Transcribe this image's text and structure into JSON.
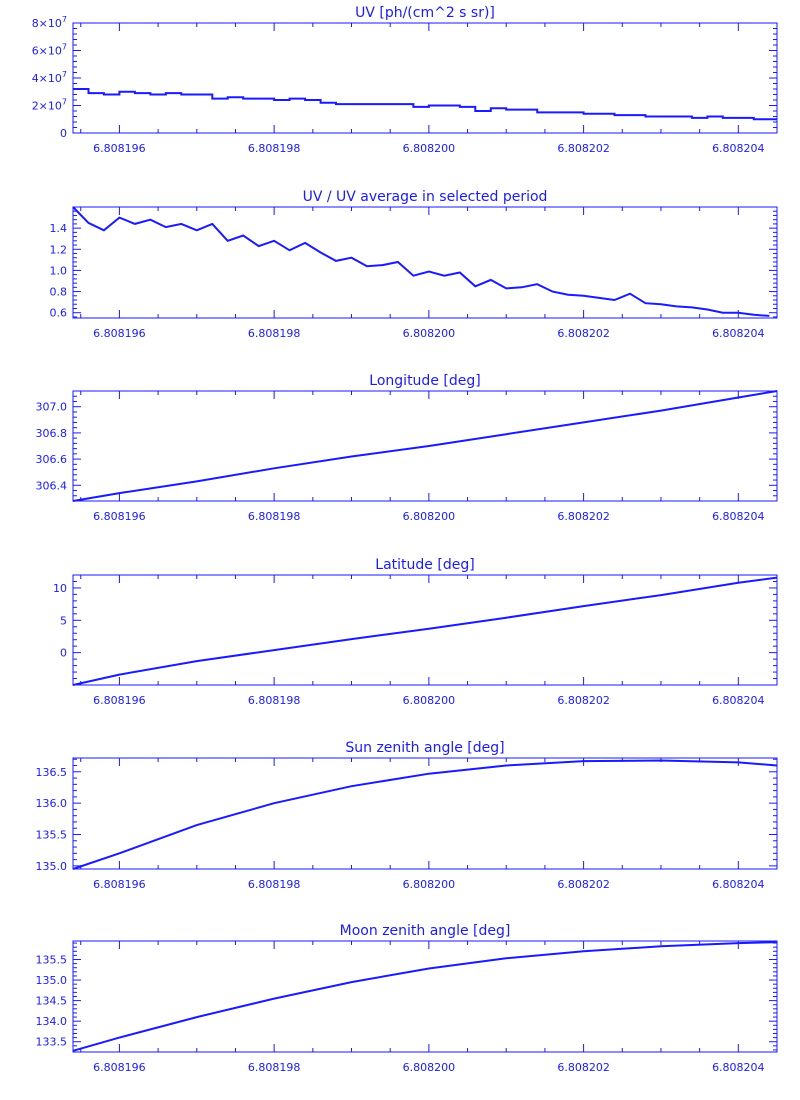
{
  "colors": {
    "ink": "#1a1aff",
    "background": "#ffffff"
  },
  "chart_data": [
    {
      "type": "line",
      "step": true,
      "title": "UV [ph/(cm^2 s sr)]",
      "xlim": [
        6.8081954,
        6.8082045
      ],
      "x_ticks": [
        6.808196,
        6.808198,
        6.8082,
        6.808202,
        6.808204
      ],
      "x_tick_labels": [
        "6.808196",
        "6.808198",
        "6.808200",
        "6.808202",
        "6.808204"
      ],
      "ylim": [
        0,
        80000000
      ],
      "y_ticks": [
        0,
        20000000,
        40000000,
        60000000,
        80000000
      ],
      "y_tick_labels": [
        {
          "base": "0",
          "exp": ""
        },
        {
          "base": "2×10",
          "exp": "7"
        },
        {
          "base": "4×10",
          "exp": "7"
        },
        {
          "base": "6×10",
          "exp": "7"
        },
        {
          "base": "8×10",
          "exp": "7"
        }
      ],
      "series": [
        {
          "x": [
            6.8081954,
            6.8081956,
            6.8081958,
            6.808196,
            6.8081962,
            6.8081964,
            6.8081966,
            6.8081968,
            6.808197,
            6.8081972,
            6.8081974,
            6.8081976,
            6.8081978,
            6.808198,
            6.8081982,
            6.8081984,
            6.8081986,
            6.8081988,
            6.808199,
            6.8081992,
            6.8081994,
            6.8081996,
            6.8081998,
            6.8082,
            6.8082002,
            6.8082004,
            6.8082006,
            6.8082008,
            6.808201,
            6.8082012,
            6.8082014,
            6.8082016,
            6.8082018,
            6.808202,
            6.8082022,
            6.8082024,
            6.8082026,
            6.8082028,
            6.808203,
            6.8082032,
            6.8082034,
            6.8082036,
            6.8082038,
            6.808204,
            6.8082042,
            6.8082044
          ],
          "y": [
            32000000,
            29000000,
            28000000,
            30000000,
            29000000,
            28000000,
            29000000,
            28000000,
            28000000,
            25000000,
            26000000,
            25000000,
            25000000,
            24000000,
            25000000,
            24000000,
            22000000,
            21000000,
            21000000,
            21000000,
            21000000,
            21000000,
            19000000,
            20000000,
            20000000,
            19000000,
            16000000,
            18000000,
            17000000,
            17000000,
            15000000,
            15000000,
            15000000,
            14000000,
            14000000,
            13000000,
            13000000,
            12000000,
            12000000,
            12000000,
            11000000,
            12000000,
            11000000,
            11000000,
            10000000,
            10000000
          ]
        }
      ]
    },
    {
      "type": "line",
      "title": "UV / UV average in selected period",
      "xlim": [
        6.8081954,
        6.8082045
      ],
      "x_ticks": [
        6.808196,
        6.808198,
        6.8082,
        6.808202,
        6.808204
      ],
      "x_tick_labels": [
        "6.808196",
        "6.808198",
        "6.808200",
        "6.808202",
        "6.808204"
      ],
      "ylim": [
        0.55,
        1.6
      ],
      "y_ticks": [
        0.6,
        0.8,
        1.0,
        1.2,
        1.4
      ],
      "y_tick_labels": [
        {
          "base": "0.6",
          "exp": ""
        },
        {
          "base": "0.8",
          "exp": ""
        },
        {
          "base": "1.0",
          "exp": ""
        },
        {
          "base": "1.2",
          "exp": ""
        },
        {
          "base": "1.4",
          "exp": ""
        }
      ],
      "series": [
        {
          "x": [
            6.8081954,
            6.8081956,
            6.8081958,
            6.808196,
            6.8081962,
            6.8081964,
            6.8081966,
            6.8081968,
            6.808197,
            6.8081972,
            6.8081974,
            6.8081976,
            6.8081978,
            6.808198,
            6.8081982,
            6.8081984,
            6.8081986,
            6.8081988,
            6.808199,
            6.8081992,
            6.8081994,
            6.8081996,
            6.8081998,
            6.8082,
            6.8082002,
            6.8082004,
            6.8082006,
            6.8082008,
            6.808201,
            6.8082012,
            6.8082014,
            6.8082016,
            6.8082018,
            6.808202,
            6.8082022,
            6.8082024,
            6.8082026,
            6.8082028,
            6.808203,
            6.8082032,
            6.8082034,
            6.8082036,
            6.8082038,
            6.808204,
            6.8082042,
            6.8082044
          ],
          "y": [
            1.6,
            1.45,
            1.38,
            1.5,
            1.44,
            1.48,
            1.41,
            1.44,
            1.38,
            1.44,
            1.28,
            1.33,
            1.23,
            1.28,
            1.19,
            1.26,
            1.17,
            1.09,
            1.12,
            1.04,
            1.05,
            1.08,
            0.95,
            0.99,
            0.95,
            0.98,
            0.85,
            0.91,
            0.83,
            0.84,
            0.87,
            0.8,
            0.77,
            0.76,
            0.74,
            0.72,
            0.78,
            0.69,
            0.68,
            0.66,
            0.65,
            0.63,
            0.6,
            0.6,
            0.58,
            0.57
          ]
        }
      ]
    },
    {
      "type": "line",
      "title": "Longitude [deg]",
      "xlim": [
        6.8081954,
        6.8082045
      ],
      "x_ticks": [
        6.808196,
        6.808198,
        6.8082,
        6.808202,
        6.808204
      ],
      "x_tick_labels": [
        "6.808196",
        "6.808198",
        "6.808200",
        "6.808202",
        "6.808204"
      ],
      "ylim": [
        306.28,
        307.12
      ],
      "y_ticks": [
        306.4,
        306.6,
        306.8,
        307.0
      ],
      "y_tick_labels": [
        {
          "base": "306.4",
          "exp": ""
        },
        {
          "base": "306.6",
          "exp": ""
        },
        {
          "base": "306.8",
          "exp": ""
        },
        {
          "base": "307.0",
          "exp": ""
        }
      ],
      "series": [
        {
          "x": [
            6.8081954,
            6.808196,
            6.808197,
            6.808198,
            6.808199,
            6.8082,
            6.808201,
            6.808202,
            6.808203,
            6.808204,
            6.8082045
          ],
          "y": [
            306.28,
            306.34,
            306.43,
            306.53,
            306.62,
            306.7,
            306.79,
            306.88,
            306.97,
            307.07,
            307.12
          ]
        }
      ]
    },
    {
      "type": "line",
      "title": "Latitude [deg]",
      "xlim": [
        6.8081954,
        6.8082045
      ],
      "x_ticks": [
        6.808196,
        6.808198,
        6.8082,
        6.808202,
        6.808204
      ],
      "x_tick_labels": [
        "6.808196",
        "6.808198",
        "6.808200",
        "6.808202",
        "6.808204"
      ],
      "ylim": [
        -5,
        12
      ],
      "y_ticks": [
        0,
        5,
        10
      ],
      "y_tick_labels": [
        {
          "base": "0",
          "exp": ""
        },
        {
          "base": "5",
          "exp": ""
        },
        {
          "base": "10",
          "exp": ""
        }
      ],
      "series": [
        {
          "x": [
            6.8081954,
            6.808196,
            6.808197,
            6.808198,
            6.808199,
            6.8082,
            6.808201,
            6.808202,
            6.808203,
            6.808204,
            6.8082045
          ],
          "y": [
            -5,
            -3.4,
            -1.3,
            0.4,
            2.1,
            3.7,
            5.4,
            7.2,
            8.9,
            10.8,
            11.6
          ]
        }
      ]
    },
    {
      "type": "line",
      "title": "Sun zenith angle [deg]",
      "xlim": [
        6.8081954,
        6.8082045
      ],
      "x_ticks": [
        6.808196,
        6.808198,
        6.8082,
        6.808202,
        6.808204
      ],
      "x_tick_labels": [
        "6.808196",
        "6.808198",
        "6.808200",
        "6.808202",
        "6.808204"
      ],
      "ylim": [
        134.95,
        136.72
      ],
      "y_ticks": [
        135.0,
        135.5,
        136.0,
        136.5
      ],
      "y_tick_labels": [
        {
          "base": "135.0",
          "exp": ""
        },
        {
          "base": "135.5",
          "exp": ""
        },
        {
          "base": "136.0",
          "exp": ""
        },
        {
          "base": "136.5",
          "exp": ""
        }
      ],
      "series": [
        {
          "x": [
            6.8081954,
            6.808196,
            6.808197,
            6.808198,
            6.808199,
            6.8082,
            6.808201,
            6.808202,
            6.808203,
            6.808204,
            6.8082045
          ],
          "y": [
            134.95,
            135.2,
            135.65,
            136.0,
            136.27,
            136.47,
            136.6,
            136.67,
            136.68,
            136.65,
            136.6
          ]
        }
      ]
    },
    {
      "type": "line",
      "title": "Moon zenith angle [deg]",
      "xlim": [
        6.8081954,
        6.8082045
      ],
      "x_ticks": [
        6.808196,
        6.808198,
        6.8082,
        6.808202,
        6.808204
      ],
      "x_tick_labels": [
        "6.808196",
        "6.808198",
        "6.808200",
        "6.808202",
        "6.808204"
      ],
      "ylim": [
        133.25,
        135.95
      ],
      "y_ticks": [
        133.5,
        134.0,
        134.5,
        135.0,
        135.5
      ],
      "y_tick_labels": [
        {
          "base": "133.5",
          "exp": ""
        },
        {
          "base": "134.0",
          "exp": ""
        },
        {
          "base": "134.5",
          "exp": ""
        },
        {
          "base": "135.0",
          "exp": ""
        },
        {
          "base": "135.5",
          "exp": ""
        }
      ],
      "series": [
        {
          "x": [
            6.8081954,
            6.808196,
            6.808197,
            6.808198,
            6.808199,
            6.8082,
            6.808201,
            6.808202,
            6.808203,
            6.808204,
            6.8082045
          ],
          "y": [
            133.28,
            133.6,
            134.1,
            134.55,
            134.95,
            135.28,
            135.53,
            135.7,
            135.82,
            135.9,
            135.92
          ]
        }
      ]
    }
  ]
}
